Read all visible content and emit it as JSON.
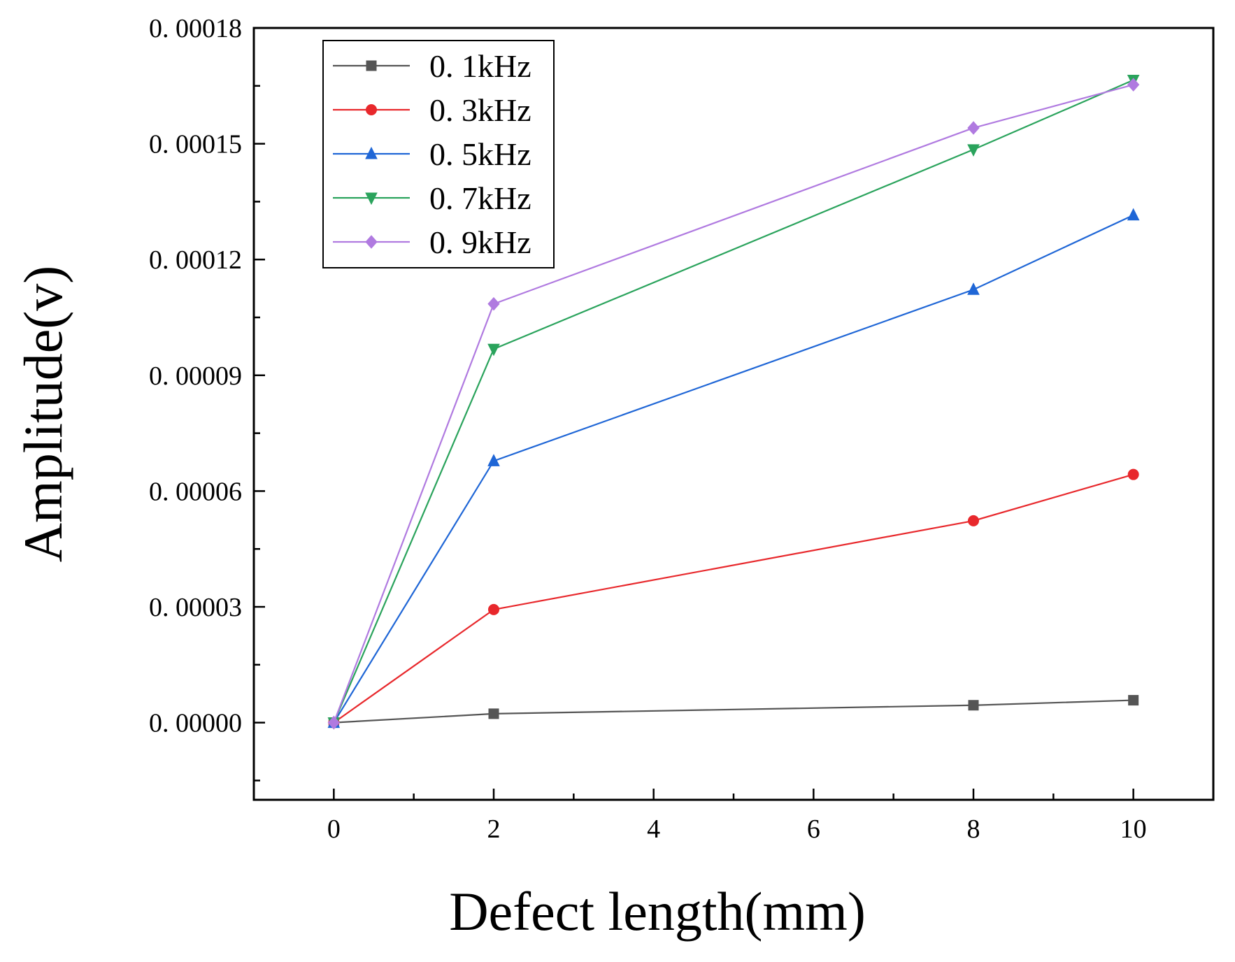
{
  "chart_data": {
    "type": "line",
    "title": "",
    "xlabel": "Defect length(mm)",
    "ylabel": "Amplitude(v)",
    "xlim": [
      -1,
      11
    ],
    "ylim": [
      -2e-05,
      0.00018
    ],
    "x": [
      0,
      2,
      8,
      10
    ],
    "xticks": [
      0,
      2,
      4,
      6,
      8,
      10
    ],
    "xtick_labels": [
      "0",
      "2",
      "4",
      "6",
      "8",
      "10"
    ],
    "yticks": [
      0,
      3e-05,
      6e-05,
      9e-05,
      0.00012,
      0.00015,
      0.00018
    ],
    "ytick_labels": [
      "0. 00000",
      "0. 00003",
      "0. 00006",
      "0. 00009",
      "0. 00012",
      "0. 00015",
      "0. 00018"
    ],
    "grid": false,
    "legend_position": "top-left",
    "series": [
      {
        "name": "0. 1kHz",
        "color": "#555555",
        "marker": "square",
        "values": [
          0,
          2.3e-06,
          4.5e-06,
          5.8e-06
        ]
      },
      {
        "name": "0. 3kHz",
        "color": "#e8282c",
        "marker": "circle",
        "values": [
          0,
          2.93e-05,
          5.23e-05,
          6.43e-05
        ]
      },
      {
        "name": "0. 5kHz",
        "color": "#1f66d6",
        "marker": "triangle-up",
        "values": [
          0,
          6.78e-05,
          0.0001122,
          0.0001315
        ]
      },
      {
        "name": "0. 7kHz",
        "color": "#2aa35c",
        "marker": "triangle-down",
        "values": [
          0,
          9.68e-05,
          0.0001485,
          0.0001665
        ]
      },
      {
        "name": "0. 9kHz",
        "color": "#b07ae0",
        "marker": "diamond",
        "values": [
          0,
          0.0001085,
          0.0001541,
          0.0001653
        ]
      }
    ]
  }
}
